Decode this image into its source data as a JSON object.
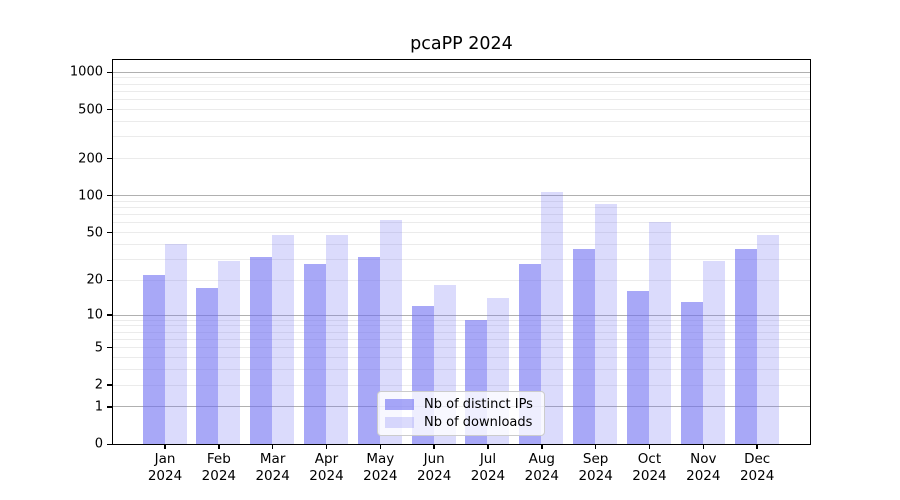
{
  "title": "pcaPP 2024",
  "chart_data": {
    "type": "bar",
    "title": "pcaPP 2024",
    "categories": [
      {
        "label": "Jan",
        "year": "2024"
      },
      {
        "label": "Feb",
        "year": "2024"
      },
      {
        "label": "Mar",
        "year": "2024"
      },
      {
        "label": "Apr",
        "year": "2024"
      },
      {
        "label": "May",
        "year": "2024"
      },
      {
        "label": "Jun",
        "year": "2024"
      },
      {
        "label": "Jul",
        "year": "2024"
      },
      {
        "label": "Aug",
        "year": "2024"
      },
      {
        "label": "Sep",
        "year": "2024"
      },
      {
        "label": "Oct",
        "year": "2024"
      },
      {
        "label": "Nov",
        "year": "2024"
      },
      {
        "label": "Dec",
        "year": "2024"
      }
    ],
    "series": [
      {
        "name": "Nb of distinct IPs",
        "color": "rgba(110,110,242,0.6)",
        "values": [
          22,
          17,
          31,
          27,
          31,
          12,
          9,
          27,
          36,
          16,
          13,
          36
        ]
      },
      {
        "name": "Nb of downloads",
        "color": "rgba(110,110,242,0.25)",
        "values": [
          40,
          29,
          47,
          47,
          63,
          18,
          14,
          106,
          85,
          60,
          29,
          47
        ]
      }
    ],
    "yscale": "log10(1+x)",
    "ylim": [
      0,
      1250
    ],
    "y_axis_ticks": [
      0,
      1,
      2,
      5,
      10,
      20,
      50,
      100,
      200,
      500,
      1000
    ],
    "major_gridlines": [
      1,
      10,
      100,
      1000
    ],
    "minor_gridlines": [
      2,
      3,
      4,
      5,
      6,
      7,
      8,
      9,
      20,
      30,
      40,
      50,
      60,
      70,
      80,
      90,
      200,
      300,
      400,
      500,
      600,
      700,
      800,
      900
    ],
    "grid": true,
    "legend_position": "lower center"
  },
  "legend": {
    "items": [
      {
        "label": "Nb of distinct IPs"
      },
      {
        "label": "Nb of downloads"
      }
    ]
  }
}
